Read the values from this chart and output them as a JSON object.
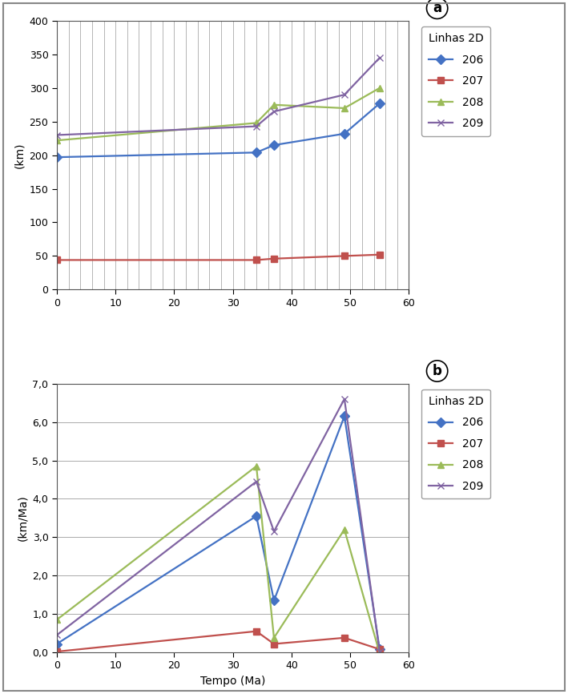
{
  "panel_a": {
    "ylabel": "(km)",
    "ylim": [
      0,
      400
    ],
    "yticks": [
      0,
      50,
      100,
      150,
      200,
      250,
      300,
      350,
      400
    ],
    "xlim": [
      0,
      60
    ],
    "xticks": [
      0,
      10,
      20,
      30,
      40,
      50,
      60
    ],
    "xgrid_minor_step": 2,
    "series": {
      "206": {
        "x": [
          0,
          34,
          37,
          49,
          55
        ],
        "y": [
          197,
          204,
          215,
          232,
          277
        ],
        "color": "#4472C4",
        "marker": "D"
      },
      "207": {
        "x": [
          0,
          34,
          37,
          49,
          55
        ],
        "y": [
          44,
          44,
          46,
          50,
          52
        ],
        "color": "#C0504D",
        "marker": "s"
      },
      "208": {
        "x": [
          0,
          34,
          37,
          49,
          55
        ],
        "y": [
          222,
          248,
          275,
          270,
          300
        ],
        "color": "#9BBB59",
        "marker": "^"
      },
      "209": {
        "x": [
          0,
          34,
          37,
          49,
          55
        ],
        "y": [
          230,
          243,
          265,
          290,
          345
        ],
        "color": "#8064A2",
        "marker": "x"
      }
    }
  },
  "panel_b": {
    "ylabel": "(km/Ma)",
    "xlabel": "Tempo (Ma)",
    "ylim": [
      0.0,
      7.0
    ],
    "yticks": [
      0.0,
      1.0,
      2.0,
      3.0,
      4.0,
      5.0,
      6.0,
      7.0
    ],
    "xlim": [
      0,
      60
    ],
    "xticks": [
      0,
      10,
      20,
      30,
      40,
      50,
      60
    ],
    "series": {
      "206": {
        "x": [
          0,
          34,
          37,
          49,
          55
        ],
        "y": [
          0.22,
          3.55,
          1.35,
          6.15,
          0.08
        ],
        "color": "#4472C4",
        "marker": "D"
      },
      "207": {
        "x": [
          0,
          34,
          37,
          49,
          55
        ],
        "y": [
          0.02,
          0.55,
          0.22,
          0.38,
          0.08
        ],
        "color": "#C0504D",
        "marker": "s"
      },
      "208": {
        "x": [
          0,
          34,
          37,
          49,
          55
        ],
        "y": [
          0.85,
          4.85,
          0.38,
          3.2,
          -0.02
        ],
        "color": "#9BBB59",
        "marker": "^"
      },
      "209": {
        "x": [
          0,
          34,
          37,
          49,
          55
        ],
        "y": [
          0.45,
          4.45,
          3.15,
          6.6,
          0.02
        ],
        "color": "#8064A2",
        "marker": "x"
      }
    }
  },
  "legend_title": "Linhas 2D",
  "series_order": [
    "206",
    "207",
    "208",
    "209"
  ],
  "background_color": "#FFFFFF",
  "grid_color": "#AAAAAA",
  "label_fontsize": 10,
  "tick_fontsize": 9,
  "legend_fontsize": 10,
  "line_width": 1.6,
  "marker_size": 6,
  "outer_border_color": "#AAAAAA"
}
